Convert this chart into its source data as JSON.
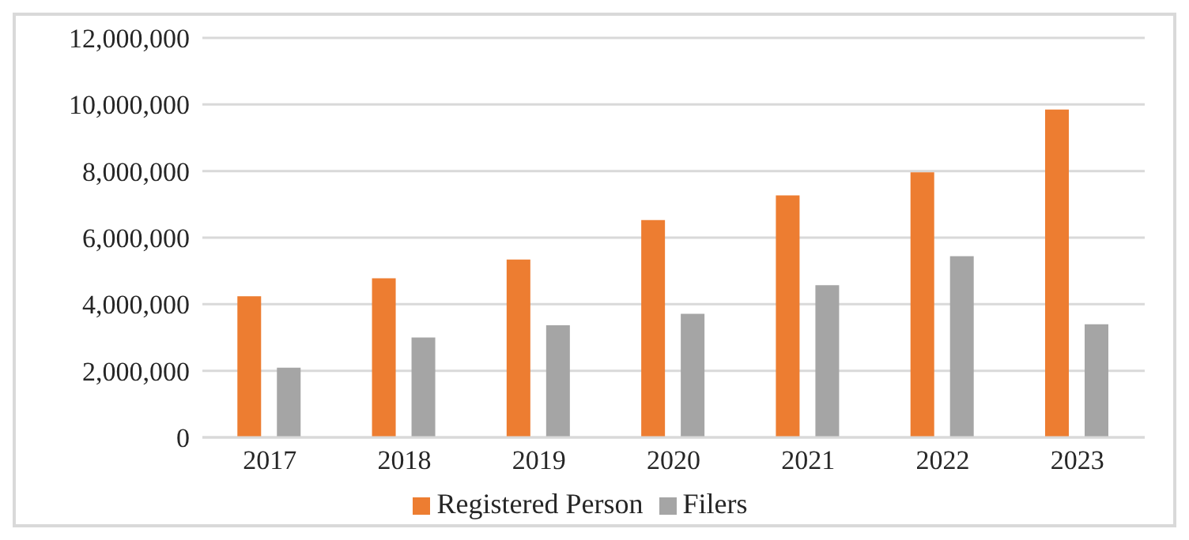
{
  "chart_data": {
    "type": "bar",
    "categories": [
      "2017",
      "2018",
      "2019",
      "2020",
      "2021",
      "2022",
      "2023"
    ],
    "series": [
      {
        "name": "Registered Person",
        "color": "#ed7d31",
        "values": [
          4240000,
          4780000,
          5340000,
          6530000,
          7270000,
          7960000,
          9850000
        ]
      },
      {
        "name": "Filers",
        "color": "#a5a5a5",
        "values": [
          2090000,
          3000000,
          3370000,
          3710000,
          4570000,
          5440000,
          3400000
        ]
      }
    ],
    "ylim": [
      0,
      12000000
    ],
    "yticks": [
      0,
      {
        "value": 2000000,
        "label": "2,000,000"
      },
      {
        "value": 4000000,
        "label": "4,000,000"
      },
      {
        "value": 6000000,
        "label": "6,000,000"
      },
      {
        "value": 8000000,
        "label": "8,000,000"
      },
      {
        "value": 10000000,
        "label": "10,000,000"
      },
      {
        "value": 12000000,
        "label": "12,000,000"
      }
    ],
    "grid": "y",
    "legend": "bottom"
  }
}
